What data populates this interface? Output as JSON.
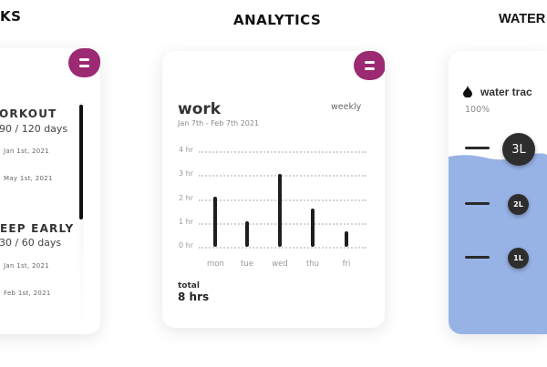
{
  "headers": {
    "left": "KS",
    "center": "ANALYTICS",
    "right": "WATER"
  },
  "colors": {
    "accent": "#9c2a72",
    "water": "#97b3e6",
    "bar": "#1e1e1e"
  },
  "tasks": [
    {
      "title": "ORKOUT",
      "progress": "90 / 120 days",
      "start": "Jan 1st, 2021",
      "end": "May 1st, 2021"
    },
    {
      "title": "EEP EARLY",
      "progress": "30 / 60 days",
      "start": "Jan 1st, 2021",
      "end": "Feb 1st, 2021"
    }
  ],
  "analytics": {
    "title": "work",
    "range": "Jan 7th - Feb 7th 2021",
    "period": "weekly",
    "total_label": "total",
    "total_value": "8 hrs"
  },
  "chart_data": {
    "type": "bar",
    "categories": [
      "mon",
      "tue",
      "wed",
      "thu",
      "fri"
    ],
    "values": [
      2.1,
      1.05,
      3.05,
      1.6,
      0.65
    ],
    "yticks": [
      "0 hr",
      "1 hr",
      "2 hr",
      "3 hr",
      "4 hr"
    ],
    "ylim": [
      0,
      4
    ],
    "grid": true
  },
  "water": {
    "icon": "drop-icon",
    "title": "water trac",
    "percent": "100%",
    "levels": [
      "3L",
      "2L",
      "1L"
    ],
    "fill_fraction": 1.0
  }
}
